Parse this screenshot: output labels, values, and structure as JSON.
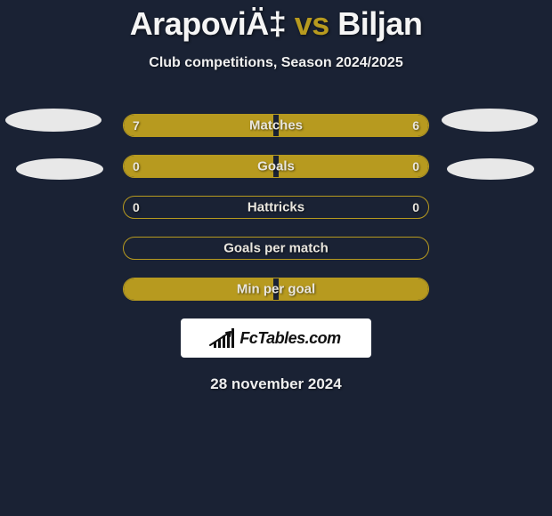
{
  "colors": {
    "background": "#1a2234",
    "accent": "#b79a1f",
    "text_primary": "#f5f5f5",
    "ellipse": "#e8e8e8",
    "logo_bg": "#ffffff",
    "logo_fg": "#111111"
  },
  "header": {
    "player_a": "ArapoviÄ‡",
    "vs": " vs ",
    "player_b": "Biljan",
    "subtitle": "Club competitions, Season 2024/2025"
  },
  "rows": [
    {
      "label": "Matches",
      "left": "7",
      "right": "6",
      "fill_left_pct": 49,
      "fill_right_pct": 49
    },
    {
      "label": "Goals",
      "left": "0",
      "right": "0",
      "fill_left_pct": 49,
      "fill_right_pct": 49
    },
    {
      "label": "Hattricks",
      "left": "0",
      "right": "0",
      "fill_left_pct": 0,
      "fill_right_pct": 0
    },
    {
      "label": "Goals per match",
      "left": "",
      "right": "",
      "fill_left_pct": 0,
      "fill_right_pct": 0
    },
    {
      "label": "Min per goal",
      "left": "",
      "right": "",
      "fill_left_pct": 49,
      "fill_right_pct": 49
    }
  ],
  "logo": {
    "text": "FcTables.com"
  },
  "date": "28 november 2024"
}
